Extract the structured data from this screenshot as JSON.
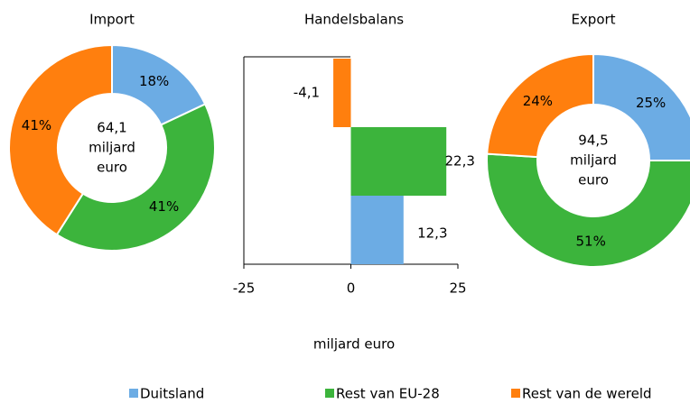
{
  "chart_data": [
    {
      "type": "donut",
      "title": "Import",
      "categories": [
        "Duitsland",
        "Rest van EU-28",
        "Rest van de wereld"
      ],
      "values": [
        18,
        41,
        41
      ],
      "value_labels": [
        "18%",
        "41%",
        "41%"
      ],
      "colors": [
        "#6cace4",
        "#3cb43c",
        "#ff7f0e"
      ],
      "center_lines": [
        "64,1",
        "miljard",
        "euro"
      ]
    },
    {
      "type": "hbar",
      "title": "Handelsbalans",
      "categories": [
        null,
        null,
        null
      ],
      "values": [
        -4.1,
        22.3,
        12.3
      ],
      "value_labels": [
        "-4,1",
        "22,3",
        "12,3"
      ],
      "colors": [
        "#ff7f0e",
        "#3cb43c",
        "#6cace4"
      ],
      "xlim": [
        -25,
        25
      ],
      "xticks": [
        -25,
        0,
        25
      ],
      "xlabel": "miljard euro"
    },
    {
      "type": "donut",
      "title": "Export",
      "categories": [
        "Duitsland",
        "Rest van EU-28",
        "Rest van de wereld"
      ],
      "values": [
        25,
        51,
        24
      ],
      "value_labels": [
        "25%",
        "51%",
        "24%"
      ],
      "colors": [
        "#6cace4",
        "#3cb43c",
        "#ff7f0e"
      ],
      "center_lines": [
        "94,5",
        "miljard",
        "euro"
      ]
    }
  ]
}
